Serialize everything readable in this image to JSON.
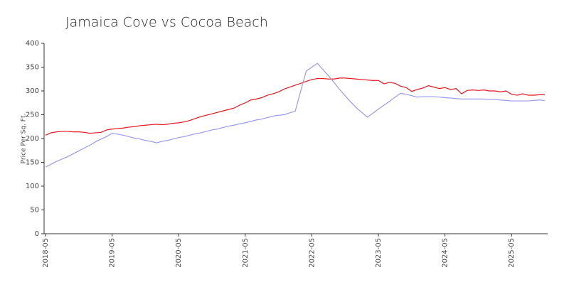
{
  "chart_data": {
    "type": "line",
    "title": "Jamaica Cove vs Cocoa Beach",
    "y_label": "Price Per Sq. Ft.",
    "categories": [
      "2018-05",
      null,
      null,
      null,
      null,
      null,
      null,
      null,
      null,
      null,
      null,
      null,
      "2019-05",
      null,
      null,
      null,
      null,
      null,
      null,
      null,
      null,
      null,
      null,
      null,
      "2020-05",
      null,
      null,
      null,
      null,
      null,
      null,
      null,
      null,
      null,
      null,
      null,
      "2021-05",
      null,
      null,
      null,
      null,
      null,
      null,
      null,
      null,
      null,
      null,
      null,
      "2022-05",
      null,
      null,
      null,
      null,
      null,
      null,
      null,
      null,
      null,
      null,
      null,
      "2023-05",
      null,
      null,
      null,
      null,
      null,
      null,
      null,
      null,
      null,
      null,
      null,
      "2024-05",
      null,
      null,
      null,
      null,
      null,
      null,
      null,
      null,
      null,
      null,
      null,
      "2025-05",
      null,
      null,
      null,
      null,
      null,
      null
    ],
    "series": [
      {
        "color": "#e8141c",
        "values": [
          207,
          212,
          214,
          215,
          215,
          214,
          214,
          213,
          211,
          212,
          213,
          218,
          220,
          221,
          222,
          224,
          225,
          227,
          228,
          229,
          230,
          229,
          230,
          232,
          233,
          235,
          238,
          242,
          246,
          249,
          252,
          255,
          258,
          261,
          264,
          270,
          275,
          281,
          283,
          286,
          291,
          294,
          298,
          304,
          308,
          312,
          316,
          320,
          324,
          326,
          326,
          325,
          325,
          327,
          327,
          326,
          325,
          324,
          323,
          322,
          322,
          315,
          318,
          316,
          310,
          307,
          299,
          303,
          306,
          311,
          308,
          305,
          307,
          303,
          305,
          294,
          301,
          302,
          301,
          302,
          300,
          300,
          298,
          300,
          293,
          291,
          294,
          291,
          291,
          292,
          292
        ]
      },
      {
        "color": "#9999ee",
        "values": [
          140,
          146,
          152,
          157,
          162,
          168,
          174,
          180,
          186,
          193,
          199,
          204,
          211,
          209,
          207,
          204,
          201,
          199,
          196,
          194,
          191,
          194,
          196,
          199,
          202,
          204,
          207,
          210,
          212,
          215,
          218,
          220,
          223,
          226,
          228,
          231,
          233,
          236,
          239,
          241,
          244,
          247,
          249,
          250,
          254,
          257,
          300,
          342,
          350,
          358,
          345,
          332,
          318,
          303,
          290,
          277,
          265,
          255,
          245,
          253,
          262,
          270,
          278,
          287,
          295,
          293,
          290,
          287,
          288,
          288,
          288,
          287,
          286,
          285,
          284,
          283,
          283,
          283,
          283,
          283,
          282,
          282,
          281,
          280,
          279,
          279,
          279,
          279,
          280,
          281,
          280
        ]
      }
    ],
    "ylim": [
      0,
      400
    ],
    "yticks": [
      0,
      50,
      100,
      150,
      200,
      250,
      300,
      350,
      400
    ]
  }
}
